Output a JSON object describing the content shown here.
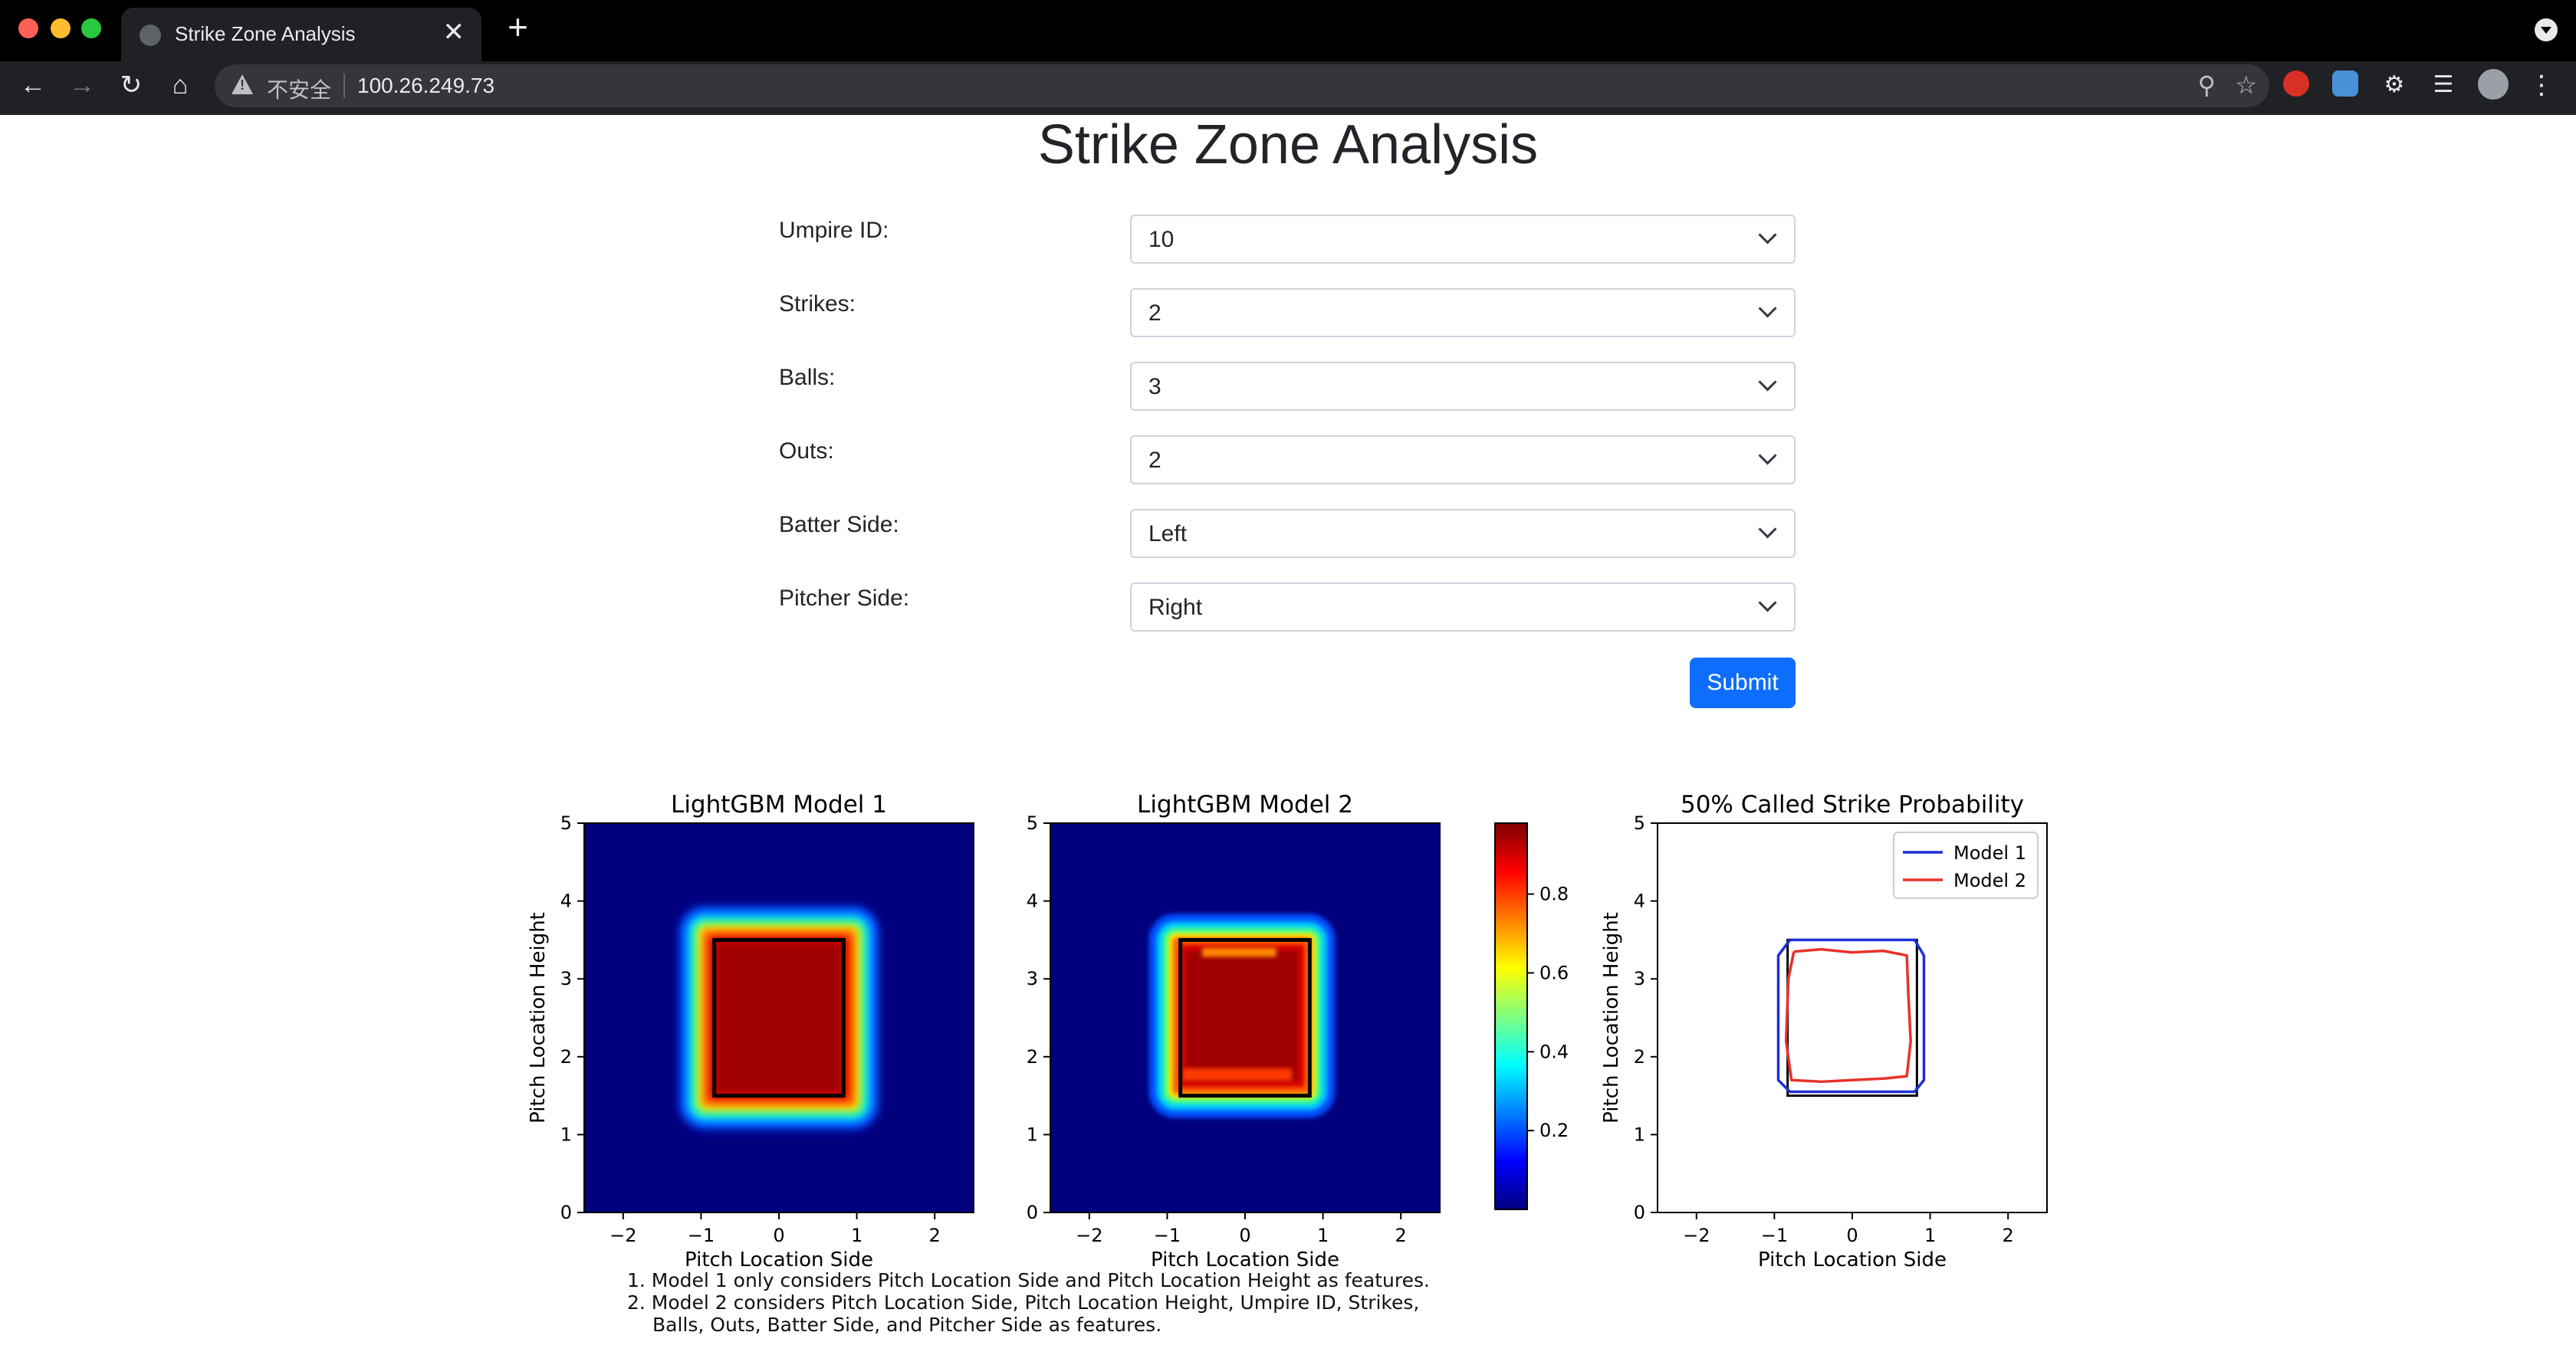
{
  "browser": {
    "tab_title": "Strike Zone Analysis",
    "tab_close": "✕",
    "new_tab": "+",
    "insecure_label": "不安全",
    "url": "100.26.249.73"
  },
  "page": {
    "title": "Strike Zone Analysis"
  },
  "form": {
    "fields": [
      {
        "label": "Umpire ID:",
        "value": "10"
      },
      {
        "label": "Strikes:",
        "value": "2"
      },
      {
        "label": "Balls:",
        "value": "3"
      },
      {
        "label": "Outs:",
        "value": "2"
      },
      {
        "label": "Batter Side:",
        "value": "Left"
      },
      {
        "label": "Pitcher Side:",
        "value": "Right"
      }
    ],
    "submit_label": "Submit"
  },
  "chart_data": [
    {
      "type": "heatmap",
      "title": "LightGBM Model 1",
      "xlabel": "Pitch Location Side",
      "ylabel": "Pitch Location Height",
      "xlim": [
        -2.5,
        2.5
      ],
      "ylim": [
        0,
        5
      ],
      "xticks": [
        "−2",
        "−1",
        "0",
        "1",
        "2"
      ],
      "yticks": [
        "0",
        "1",
        "2",
        "3",
        "4",
        "5"
      ],
      "strike_zone": {
        "x": [
          -0.83,
          0.83
        ],
        "y": [
          1.5,
          3.5
        ]
      },
      "high_region": {
        "x": [
          -0.95,
          0.95
        ],
        "y": [
          1.4,
          3.6
        ]
      }
    },
    {
      "type": "heatmap",
      "title": "LightGBM Model 2",
      "xlabel": "Pitch Location Side",
      "ylabel": "",
      "xlim": [
        -2.5,
        2.5
      ],
      "ylim": [
        0,
        5
      ],
      "xticks": [
        "−2",
        "−1",
        "0",
        "1",
        "2"
      ],
      "yticks": [
        "0",
        "1",
        "2",
        "3",
        "4",
        "5"
      ],
      "strike_zone": {
        "x": [
          -0.83,
          0.83
        ],
        "y": [
          1.5,
          3.5
        ]
      },
      "high_region": {
        "x": [
          -0.9,
          0.82
        ],
        "y": [
          1.55,
          3.5
        ]
      },
      "colorbar": {
        "ticks": [
          "0.2",
          "0.4",
          "0.6",
          "0.8"
        ],
        "range": [
          0,
          0.98
        ],
        "colormap": "jet"
      }
    },
    {
      "type": "line",
      "title": "50% Called Strike Probability",
      "xlabel": "Pitch Location Side",
      "ylabel": "Pitch Location Height",
      "xlim": [
        -2.5,
        2.5
      ],
      "ylim": [
        0,
        5
      ],
      "xticks": [
        "−2",
        "−1",
        "0",
        "1",
        "2"
      ],
      "yticks": [
        "0",
        "1",
        "2",
        "3",
        "4",
        "5"
      ],
      "legend_position": "top-right",
      "strike_zone": {
        "x": [
          -0.83,
          0.83
        ],
        "y": [
          1.5,
          3.5
        ]
      },
      "series": [
        {
          "name": "Model 1",
          "color": "#1f2fd6",
          "x": [
            -0.8,
            0.8,
            0.92,
            0.92,
            0.8,
            -0.8,
            -0.95,
            -0.95,
            -0.8
          ],
          "y": [
            3.5,
            3.5,
            3.3,
            1.7,
            1.55,
            1.55,
            1.7,
            3.3,
            3.5
          ]
        },
        {
          "name": "Model 2",
          "color": "#e8322a",
          "x": [
            -0.75,
            -0.4,
            0,
            0.4,
            0.7,
            0.72,
            0.75,
            0.7,
            0.4,
            0,
            -0.4,
            -0.78,
            -0.85,
            -0.82,
            -0.75
          ],
          "y": [
            3.35,
            3.38,
            3.34,
            3.36,
            3.3,
            2.8,
            2.2,
            1.75,
            1.72,
            1.7,
            1.68,
            1.7,
            2.2,
            3.0,
            3.35
          ]
        }
      ]
    }
  ],
  "footnotes": [
    "1. Model 1 only considers Pitch Location Side and Pitch Location Height as features.",
    "2. Model 2 considers Pitch Location Side, Pitch Location Height, Umpire ID, Strikes,",
    "Balls, Outs, Batter Side, and Pitcher Side as features."
  ],
  "colors": {
    "accent": "#0d6efd",
    "chrome_bg": "#202124"
  }
}
